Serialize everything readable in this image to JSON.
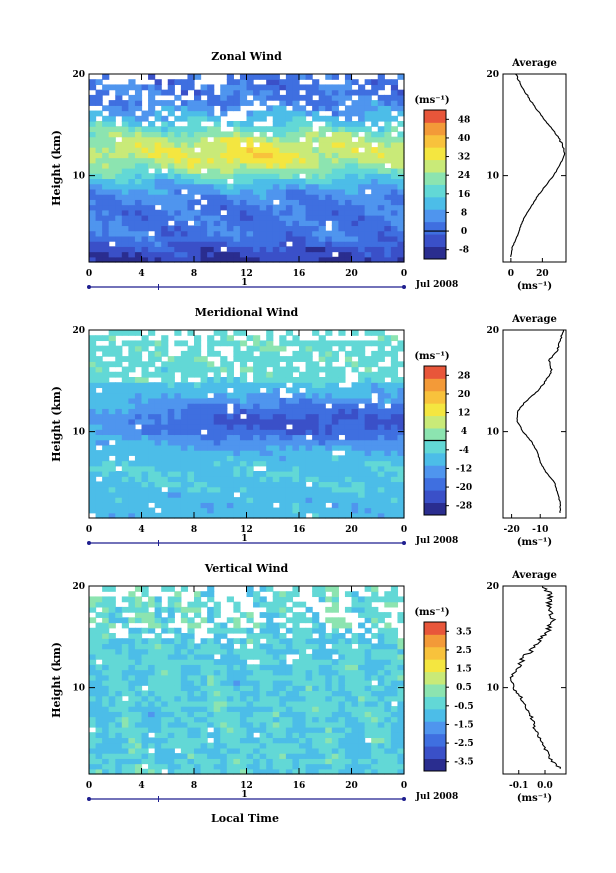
{
  "figure": {
    "xlabel": "Local Time"
  },
  "chart_data": [
    {
      "type": "heatmap",
      "title": "Zonal Wind",
      "ylabel": "Height (km)",
      "x_ticks": [
        "0",
        "4",
        "8",
        "12",
        "16",
        "20",
        "0"
      ],
      "xlim": [
        0,
        24
      ],
      "y_ticks": [
        "10",
        "20"
      ],
      "ylim": [
        1.5,
        20
      ],
      "day_label": "1",
      "date_label": "Jul 2008",
      "colorbar": {
        "unit": "(ms⁻¹)",
        "ticks": [
          "-8",
          "0",
          "8",
          "16",
          "24",
          "32",
          "40",
          "48"
        ],
        "range": [
          -12,
          52
        ],
        "colors": [
          "#2a2d8f",
          "#3a50c8",
          "#3f6fe0",
          "#4f95ee",
          "#4cbde8",
          "#62d8d6",
          "#8ce4b0",
          "#c9ea78",
          "#f4e640",
          "#f8c23c",
          "#f39a38",
          "#e8563a"
        ]
      },
      "pattern": "zonal",
      "profile": {
        "title": "Average",
        "xlabel": "(ms⁻¹)",
        "x_ticks": [
          "0",
          "20"
        ],
        "xlim": [
          -5,
          35
        ],
        "y": [
          2,
          3,
          4,
          5,
          6,
          7,
          8,
          9,
          10,
          11,
          12,
          13,
          14,
          15,
          16,
          17,
          18,
          19,
          20
        ],
        "x": [
          0,
          1,
          4,
          6,
          9,
          13,
          17,
          22,
          27,
          31,
          34,
          33,
          29,
          24,
          19,
          14,
          10,
          6,
          3
        ]
      }
    },
    {
      "type": "heatmap",
      "title": "Meridional Wind",
      "ylabel": "Height (km)",
      "x_ticks": [
        "0",
        "4",
        "8",
        "12",
        "16",
        "20",
        "0"
      ],
      "xlim": [
        0,
        24
      ],
      "y_ticks": [
        "10",
        "20"
      ],
      "ylim": [
        1.5,
        20
      ],
      "day_label": "1",
      "date_label": "Jul 2008",
      "colorbar": {
        "unit": "(ms⁻¹)",
        "ticks": [
          "-28",
          "-20",
          "-12",
          "-4",
          "4",
          "12",
          "20",
          "28"
        ],
        "range": [
          -32,
          32
        ],
        "colors": [
          "#2a2d8f",
          "#3a50c8",
          "#3f6fe0",
          "#4f95ee",
          "#4cbde8",
          "#62d8d6",
          "#8ce4b0",
          "#c9ea78",
          "#f4e640",
          "#f8c23c",
          "#f39a38",
          "#e8563a"
        ]
      },
      "pattern": "meridional",
      "profile": {
        "title": "Average",
        "xlabel": "(ms⁻¹)",
        "x_ticks": [
          "-20",
          "-10"
        ],
        "xlim": [
          -23,
          -1
        ],
        "y": [
          2,
          3,
          4,
          5,
          6,
          7,
          8,
          9,
          10,
          11,
          12,
          13,
          14,
          15,
          16,
          17,
          18,
          19,
          20
        ],
        "x": [
          -3,
          -3,
          -4,
          -5,
          -8,
          -10,
          -11,
          -13,
          -16,
          -18,
          -18,
          -15,
          -11,
          -8,
          -6,
          -7,
          -4,
          -3,
          -2
        ]
      }
    },
    {
      "type": "heatmap",
      "title": "Vertical Wind",
      "ylabel": "Height (km)",
      "x_ticks": [
        "0",
        "4",
        "8",
        "12",
        "16",
        "20",
        "0"
      ],
      "xlim": [
        0,
        24
      ],
      "y_ticks": [
        "10",
        "20"
      ],
      "ylim": [
        1.5,
        20
      ],
      "day_label": "1",
      "date_label": "Jul 2008",
      "colorbar": {
        "unit": "(ms⁻¹)",
        "ticks": [
          "-3.5",
          "-2.5",
          "-1.5",
          "-0.5",
          "0.5",
          "1.5",
          "2.5",
          "3.5"
        ],
        "range": [
          -4,
          4
        ],
        "colors": [
          "#2a2d8f",
          "#3a50c8",
          "#3f6fe0",
          "#4f95ee",
          "#4cbde8",
          "#62d8d6",
          "#8ce4b0",
          "#c9ea78",
          "#f4e640",
          "#f8c23c",
          "#f39a38",
          "#e8563a"
        ]
      },
      "pattern": "vertical",
      "profile": {
        "title": "Average",
        "xlabel": "(ms⁻¹)",
        "x_ticks": [
          "-0.1",
          "0.0"
        ],
        "xlim": [
          -0.16,
          0.08
        ],
        "y": [
          2,
          3,
          4,
          5,
          6,
          7,
          8,
          9,
          10,
          11,
          12,
          13,
          14,
          15,
          16,
          17,
          18,
          19,
          20
        ],
        "x": [
          0.06,
          0.02,
          0.0,
          -0.02,
          -0.04,
          -0.05,
          -0.07,
          -0.09,
          -0.12,
          -0.13,
          -0.1,
          -0.08,
          -0.04,
          -0.01,
          0.02,
          0.03,
          0.01,
          0.02,
          0.0
        ]
      }
    }
  ]
}
